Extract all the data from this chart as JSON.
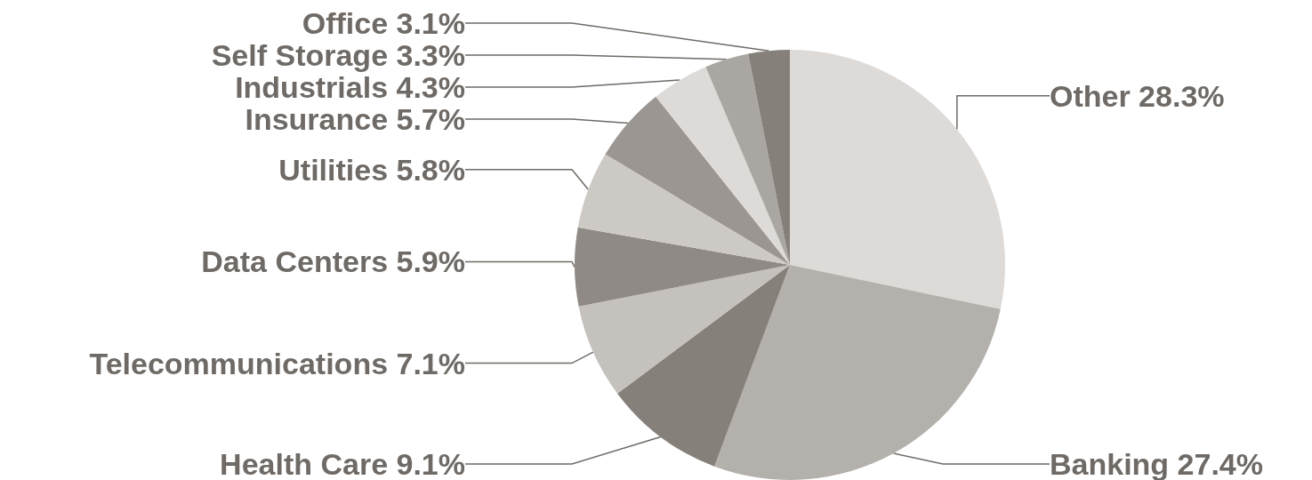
{
  "chart_data": {
    "type": "pie",
    "categories": [
      "Other",
      "Banking",
      "Health Care",
      "Telecommunications",
      "Data Centers",
      "Utilities",
      "Insurance",
      "Industrials",
      "Self Storage",
      "Office"
    ],
    "values": [
      28.3,
      27.4,
      9.1,
      7.1,
      5.9,
      5.8,
      5.7,
      4.3,
      3.3,
      3.1
    ],
    "value_labels": [
      "28.3%",
      "27.4%",
      "9.1%",
      "7.1%",
      "5.9%",
      "5.8%",
      "5.7%",
      "4.3%",
      "3.3%",
      "3.1%"
    ],
    "colors": [
      "#dedad8",
      "#b4b0ac",
      "#858079",
      "#c5c1bd",
      "#8f8a85",
      "#cdc9c5",
      "#9b9691",
      "#dedad8",
      "#aaa6a1",
      "#858079"
    ],
    "legend": false
  }
}
